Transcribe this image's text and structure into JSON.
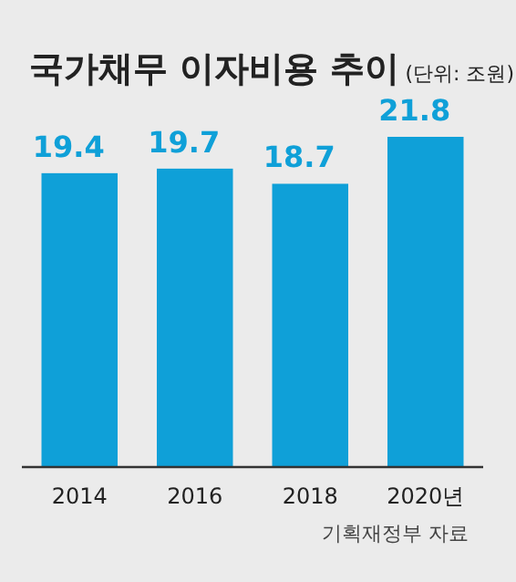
{
  "chart_data": {
    "type": "bar",
    "title": "국가채무 이자비용 추이",
    "subtitle": "(단위: 조원)",
    "categories": [
      "2014",
      "2016",
      "2018",
      "2020년"
    ],
    "values": [
      19.4,
      19.7,
      18.7,
      21.8
    ],
    "color": "#0fa0d8",
    "data_labels": true,
    "annotations": [
      "기획재정부 자료"
    ]
  }
}
